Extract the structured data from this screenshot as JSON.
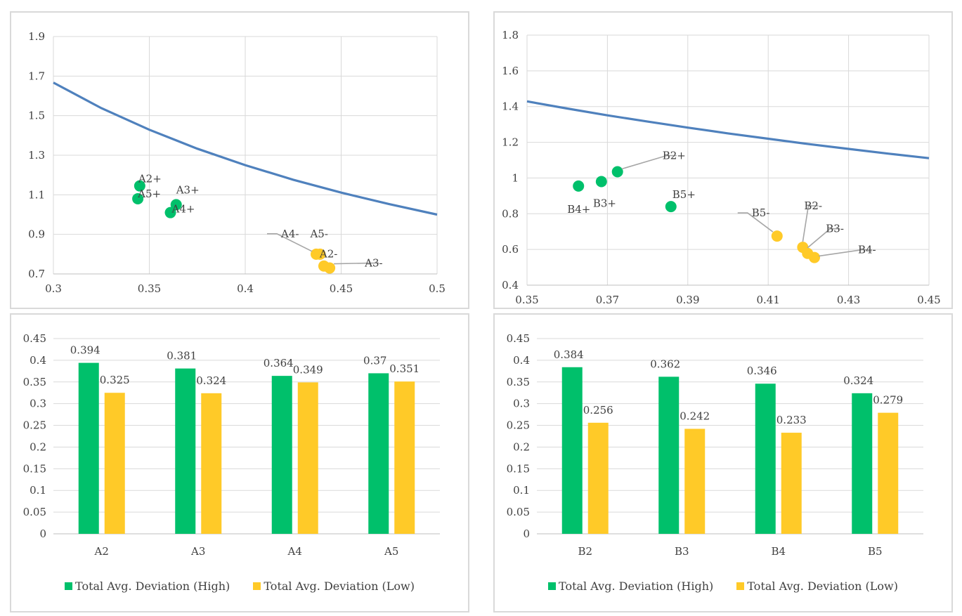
{
  "colors": {
    "curve": "#4f81bd",
    "high": "#00c06b",
    "low": "#ffca28",
    "grid": "#d9d9d9",
    "axis": "#bfbfbf",
    "leader": "#a6a6a6"
  },
  "chart_data": [
    {
      "id": "a-scatter",
      "type": "scatter",
      "title": "",
      "xlabel": "",
      "ylabel": "",
      "xlim": [
        0.3,
        0.5
      ],
      "ylim": [
        0.7,
        1.9
      ],
      "xticks": [
        0.3,
        0.35,
        0.4,
        0.45,
        0.5
      ],
      "yticks": [
        0.7,
        0.9,
        1.1,
        1.3,
        1.5,
        1.7,
        1.9
      ],
      "xtick_labels": [
        "0.3",
        "0.35",
        "0.4",
        "0.45",
        "0.5"
      ],
      "ytick_labels": [
        "0.7",
        "0.9",
        "1.1",
        "1.3",
        "1.5",
        "1.7",
        "1.9"
      ],
      "grid": "vertical and horizontal",
      "curve": {
        "x": [
          0.3,
          0.325,
          0.35,
          0.375,
          0.4,
          0.425,
          0.45,
          0.475,
          0.5
        ],
        "y": [
          1.667,
          1.538,
          1.429,
          1.333,
          1.25,
          1.176,
          1.111,
          1.053,
          1.0
        ]
      },
      "points": [
        {
          "label": "A2+",
          "x": 0.345,
          "y": 1.145,
          "group": "high"
        },
        {
          "label": "A5+",
          "x": 0.344,
          "y": 1.08,
          "group": "high"
        },
        {
          "label": "A3+",
          "x": 0.364,
          "y": 1.05,
          "group": "high"
        },
        {
          "label": "A4+",
          "x": 0.361,
          "y": 1.01,
          "group": "high"
        },
        {
          "label": "A4-",
          "x": 0.437,
          "y": 0.8,
          "group": "low"
        },
        {
          "label": "A5-",
          "x": 0.439,
          "y": 0.8,
          "group": "low"
        },
        {
          "label": "A2-",
          "x": 0.441,
          "y": 0.74,
          "group": "low"
        },
        {
          "label": "A3-",
          "x": 0.444,
          "y": 0.73,
          "group": "low"
        }
      ]
    },
    {
      "id": "b-scatter",
      "type": "scatter",
      "title": "",
      "xlabel": "",
      "ylabel": "",
      "xlim": [
        0.35,
        0.45
      ],
      "ylim": [
        0.4,
        1.8
      ],
      "xticks": [
        0.35,
        0.37,
        0.39,
        0.41,
        0.43,
        0.45
      ],
      "yticks": [
        0.4,
        0.6,
        0.8,
        1.0,
        1.2,
        1.4,
        1.6,
        1.8
      ],
      "xtick_labels": [
        "0.35",
        "0.37",
        "0.39",
        "0.41",
        "0.43",
        "0.45"
      ],
      "ytick_labels": [
        "0.4",
        "0.6",
        "0.8",
        "1",
        "1.2",
        "1.4",
        "1.6",
        "1.8"
      ],
      "grid": "vertical and horizontal",
      "curve": {
        "x": [
          0.35,
          0.36,
          0.37,
          0.38,
          0.39,
          0.4,
          0.41,
          0.42,
          0.43,
          0.44,
          0.45
        ],
        "y": [
          1.429,
          1.389,
          1.351,
          1.316,
          1.282,
          1.25,
          1.22,
          1.19,
          1.163,
          1.136,
          1.111
        ]
      },
      "points": [
        {
          "label": "B2+",
          "x": 0.3725,
          "y": 1.035,
          "group": "high"
        },
        {
          "label": "B3+",
          "x": 0.3685,
          "y": 0.98,
          "group": "high"
        },
        {
          "label": "B4+",
          "x": 0.3628,
          "y": 0.955,
          "group": "high"
        },
        {
          "label": "B5+",
          "x": 0.3858,
          "y": 0.84,
          "group": "high"
        },
        {
          "label": "B5-",
          "x": 0.4122,
          "y": 0.675,
          "group": "low"
        },
        {
          "label": "B2-",
          "x": 0.4186,
          "y": 0.612,
          "group": "low"
        },
        {
          "label": "B3-",
          "x": 0.4198,
          "y": 0.578,
          "group": "low"
        },
        {
          "label": "B4-",
          "x": 0.4215,
          "y": 0.555,
          "group": "low"
        }
      ]
    },
    {
      "id": "a-bar",
      "type": "bar",
      "title": "",
      "xlabel": "",
      "ylabel": "",
      "categories": [
        "A2",
        "A3",
        "A4",
        "A5"
      ],
      "ylim": [
        0,
        0.45
      ],
      "yticks": [
        0,
        0.05,
        0.1,
        0.15,
        0.2,
        0.25,
        0.3,
        0.35,
        0.4,
        0.45
      ],
      "ytick_labels": [
        "0",
        "0.05",
        "0.1",
        "0.15",
        "0.2",
        "0.25",
        "0.3",
        "0.35",
        "0.4",
        "0.45"
      ],
      "grid": "horizontal",
      "legend_position": "bottom",
      "series": [
        {
          "name": "Total Avg. Deviation (High)",
          "values": [
            0.394,
            0.381,
            0.364,
            0.37
          ],
          "labels": [
            "0.394",
            "0.381",
            "0.364",
            "0.37"
          ]
        },
        {
          "name": "Total Avg. Deviation (Low)",
          "values": [
            0.325,
            0.324,
            0.349,
            0.351
          ],
          "labels": [
            "0.325",
            "0.324",
            "0.349",
            "0.351"
          ]
        }
      ]
    },
    {
      "id": "b-bar",
      "type": "bar",
      "title": "",
      "xlabel": "",
      "ylabel": "",
      "categories": [
        "B2",
        "B3",
        "B4",
        "B5"
      ],
      "ylim": [
        0,
        0.45
      ],
      "yticks": [
        0,
        0.05,
        0.1,
        0.15,
        0.2,
        0.25,
        0.3,
        0.35,
        0.4,
        0.45
      ],
      "ytick_labels": [
        "0",
        "0.05",
        "0.1",
        "0.15",
        "0.2",
        "0.25",
        "0.3",
        "0.35",
        "0.4",
        "0.45"
      ],
      "grid": "horizontal",
      "legend_position": "bottom",
      "series": [
        {
          "name": "Total Avg. Deviation (High)",
          "values": [
            0.384,
            0.362,
            0.346,
            0.324
          ],
          "labels": [
            "0.384",
            "0.362",
            "0.346",
            "0.324"
          ]
        },
        {
          "name": "Total Avg. Deviation (Low)",
          "values": [
            0.256,
            0.242,
            0.233,
            0.279
          ],
          "labels": [
            "0.256",
            "0.242",
            "0.233",
            "0.279"
          ]
        }
      ]
    }
  ]
}
